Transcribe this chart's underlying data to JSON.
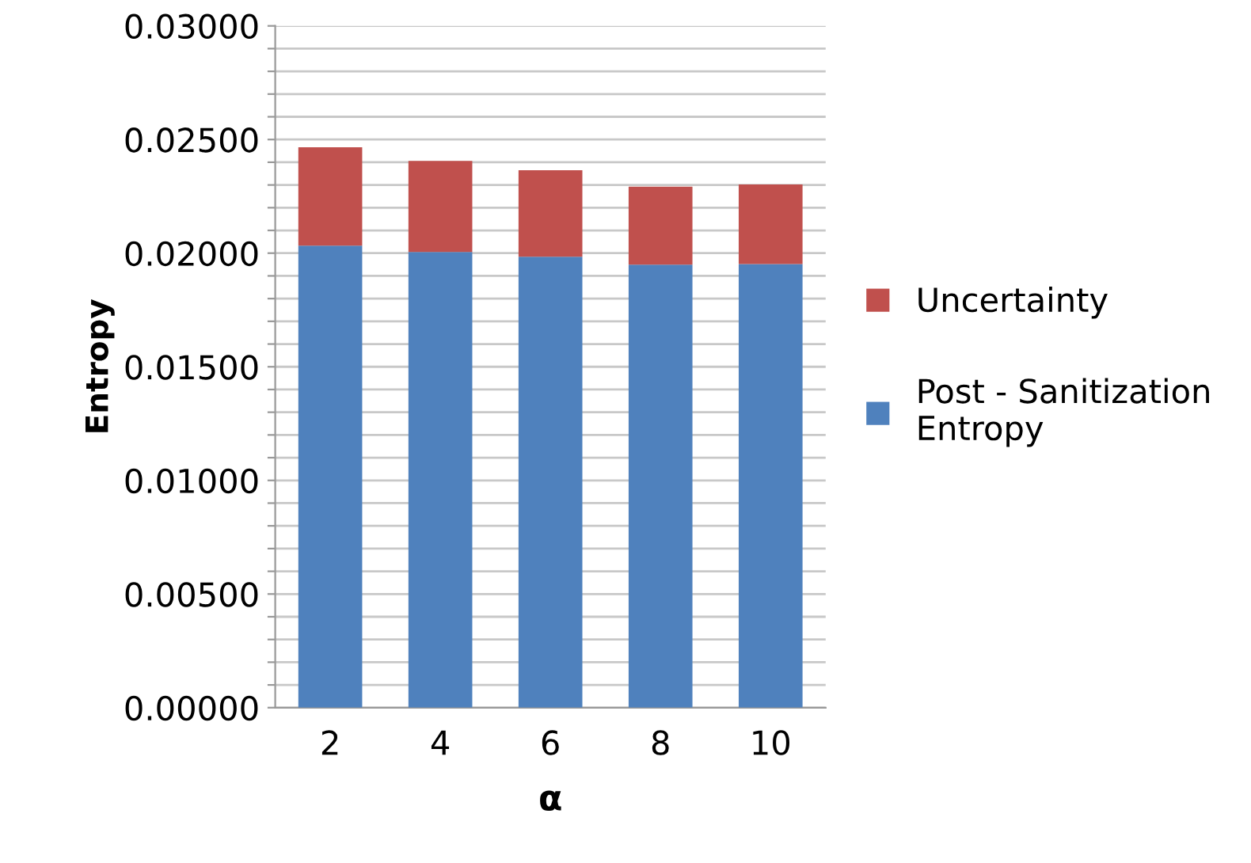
{
  "chart_data": {
    "type": "bar",
    "stacked": true,
    "xlabel": "α",
    "ylabel": "Entropy",
    "categories": [
      "2",
      "4",
      "6",
      "8",
      "10"
    ],
    "series": [
      {
        "name": "Post - Sanitization\nEntropy",
        "color": "#4f81bd",
        "values": [
          0.02033,
          0.02005,
          0.01984,
          0.01949,
          0.01952
        ]
      },
      {
        "name": "Uncertainty",
        "color": "#c0504d",
        "values": [
          0.00433,
          0.00401,
          0.00381,
          0.00344,
          0.0035
        ]
      }
    ],
    "ylim": [
      0,
      0.03
    ],
    "yticks": [
      {
        "value": 0,
        "label": "0.00000"
      },
      {
        "value": 0.001,
        "label": null
      },
      {
        "value": 0.002,
        "label": null
      },
      {
        "value": 0.003,
        "label": null
      },
      {
        "value": 0.004,
        "label": null
      },
      {
        "value": 0.005,
        "label": "0.00500"
      },
      {
        "value": 0.006,
        "label": null
      },
      {
        "value": 0.007,
        "label": null
      },
      {
        "value": 0.008,
        "label": null
      },
      {
        "value": 0.009,
        "label": null
      },
      {
        "value": 0.01,
        "label": "0.01000"
      },
      {
        "value": 0.011,
        "label": null
      },
      {
        "value": 0.012,
        "label": null
      },
      {
        "value": 0.013,
        "label": null
      },
      {
        "value": 0.014,
        "label": null
      },
      {
        "value": 0.015,
        "label": "0.01500"
      },
      {
        "value": 0.016,
        "label": null
      },
      {
        "value": 0.017,
        "label": null
      },
      {
        "value": 0.018,
        "label": null
      },
      {
        "value": 0.019,
        "label": null
      },
      {
        "value": 0.02,
        "label": "0.02000"
      },
      {
        "value": 0.021,
        "label": null
      },
      {
        "value": 0.022,
        "label": null
      },
      {
        "value": 0.023,
        "label": null
      },
      {
        "value": 0.024,
        "label": null
      },
      {
        "value": 0.025,
        "label": "0.02500"
      },
      {
        "value": 0.026,
        "label": null
      },
      {
        "value": 0.027,
        "label": null
      },
      {
        "value": 0.028,
        "label": null
      },
      {
        "value": 0.029,
        "label": null
      },
      {
        "value": 0.03,
        "label": "0.03000"
      }
    ],
    "grid": "y",
    "legend": "right"
  }
}
